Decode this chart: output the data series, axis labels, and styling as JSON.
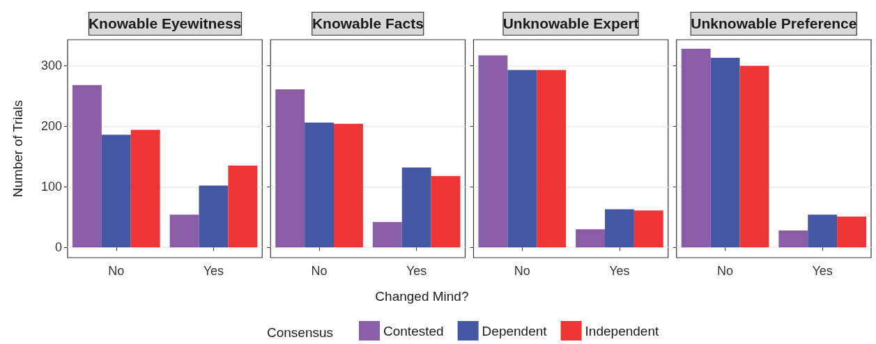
{
  "chart_data": [
    {
      "type": "bar",
      "title": "Knowable Eyewitness",
      "ylabel": "Number of Trials",
      "legend_title": "Consensus",
      "legend": "bottom",
      "grid": true,
      "categories": [
        "No",
        "Yes"
      ],
      "ylim": [
        -17,
        343
      ],
      "yticks": [
        0,
        100,
        200,
        300
      ],
      "series": [
        {
          "name": "Contested",
          "color": "#8a5ca6",
          "values": [
            268,
            54
          ]
        },
        {
          "name": "Dependent",
          "color": "#4457a5",
          "values": [
            186,
            102
          ]
        },
        {
          "name": "Independent",
          "color": "#ee3535",
          "values": [
            194,
            135
          ]
        }
      ]
    },
    {
      "type": "bar",
      "title": "Knowable Facts",
      "xlabel": "Changed Mind?",
      "grid": true,
      "tick_labels": "x",
      "categories": [
        "No",
        "Yes"
      ],
      "ylim": [
        -17,
        343
      ],
      "yticks": [
        0,
        100,
        200,
        300
      ],
      "series": [
        {
          "color": "#8a5ca6",
          "values": [
            261,
            42
          ]
        },
        {
          "color": "#4457a5",
          "values": [
            206,
            132
          ]
        },
        {
          "color": "#ee3535",
          "values": [
            204,
            118
          ]
        }
      ]
    },
    {
      "type": "bar",
      "title": "Unknowable Expert",
      "grid": true,
      "tick_labels": "x",
      "categories": [
        "No",
        "Yes"
      ],
      "ylim": [
        -17,
        343
      ],
      "yticks": [
        0,
        100,
        200,
        300
      ],
      "series": [
        {
          "color": "#8a5ca6",
          "values": [
            317,
            30
          ]
        },
        {
          "color": "#4457a5",
          "values": [
            293,
            63
          ]
        },
        {
          "color": "#ee3535",
          "values": [
            293,
            61
          ]
        }
      ]
    },
    {
      "type": "bar",
      "title": "Unknowable Preference",
      "grid": true,
      "tick_labels": "x",
      "categories": [
        "No",
        "Yes"
      ],
      "ylim": [
        -17,
        343
      ],
      "yticks": [
        0,
        100,
        200,
        300
      ],
      "series": [
        {
          "color": "#8a5ca6",
          "values": [
            328,
            28
          ]
        },
        {
          "color": "#4457a5",
          "values": [
            313,
            54
          ]
        },
        {
          "color": "#ee3535",
          "values": [
            300,
            51
          ]
        }
      ]
    }
  ]
}
